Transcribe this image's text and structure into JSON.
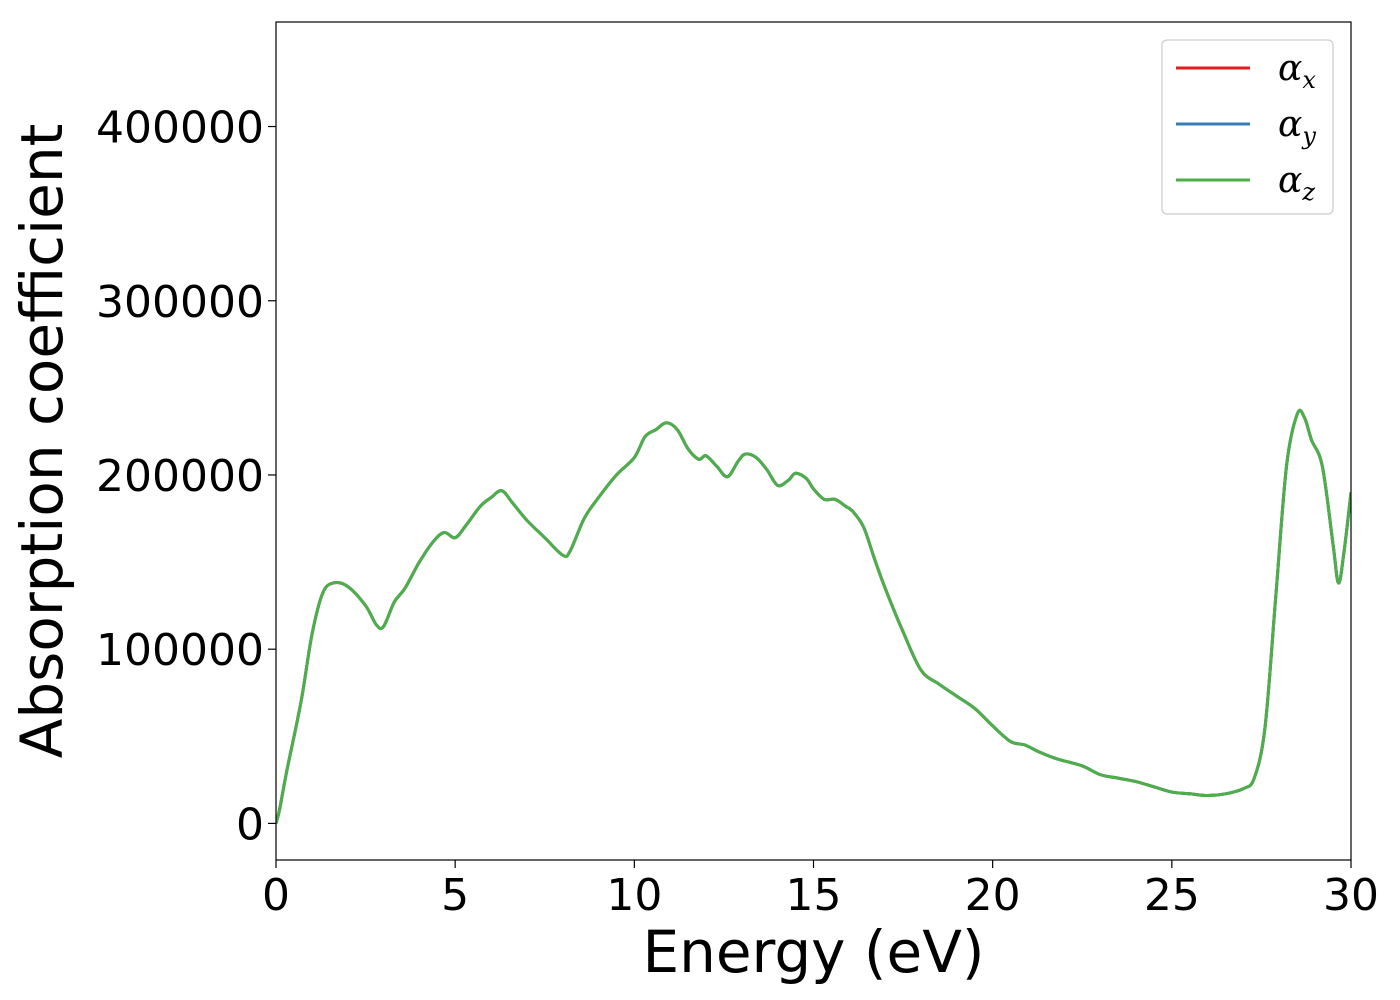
{
  "chart_data": {
    "type": "line",
    "title": "",
    "xlabel": "Energy (eV)",
    "ylabel": "Absorption coefficient",
    "xlim": [
      0,
      30
    ],
    "ylim": [
      -21000,
      460000
    ],
    "xticks": [
      0,
      5,
      10,
      15,
      20,
      25,
      30
    ],
    "xtick_labels": [
      "0",
      "5",
      "10",
      "15",
      "20",
      "25",
      "30"
    ],
    "yticks": [
      0,
      100000,
      200000,
      300000,
      400000
    ],
    "ytick_labels": [
      "0",
      "100000",
      "200000",
      "300000",
      "400000"
    ],
    "grid": false,
    "legend_position": "top-right",
    "x": [
      0,
      0.1,
      0.3,
      0.7,
      1.0,
      1.3,
      1.6,
      2.0,
      2.5,
      2.8,
      3.0,
      3.3,
      3.6,
      4.0,
      4.4,
      4.7,
      5.0,
      5.3,
      5.7,
      6.0,
      6.3,
      6.6,
      7.0,
      7.5,
      8.0,
      8.2,
      8.6,
      9.0,
      9.5,
      10.0,
      10.3,
      10.6,
      10.9,
      11.2,
      11.5,
      11.8,
      12.0,
      12.3,
      12.6,
      12.9,
      13.1,
      13.4,
      13.7,
      14.0,
      14.3,
      14.5,
      14.8,
      15.0,
      15.3,
      15.6,
      15.9,
      16.1,
      16.4,
      16.7,
      17.0,
      17.5,
      18.0,
      18.5,
      19.0,
      19.5,
      20.0,
      20.5,
      20.9,
      21.3,
      21.8,
      22.5,
      23.0,
      23.5,
      24.0,
      24.5,
      25.0,
      25.5,
      26.0,
      26.5,
      27.0,
      27.3,
      27.6,
      27.9,
      28.2,
      28.5,
      28.7,
      28.9,
      29.2,
      29.5,
      29.65,
      29.8,
      30.0
    ],
    "series": [
      {
        "name": "α_x",
        "color": "#e41a1c",
        "values": [
          0,
          8000,
          30000,
          70000,
          108000,
          132000,
          138000,
          136000,
          125000,
          114000,
          113000,
          127000,
          135000,
          150000,
          162000,
          167000,
          164000,
          171000,
          182000,
          187000,
          191000,
          184000,
          174000,
          164000,
          154000,
          156000,
          175000,
          187000,
          200000,
          210000,
          222000,
          226000,
          230000,
          226000,
          215000,
          209000,
          211000,
          205000,
          199000,
          208000,
          212000,
          210000,
          203000,
          194000,
          197000,
          201000,
          198000,
          192000,
          186000,
          186000,
          182000,
          179000,
          170000,
          152000,
          135000,
          110000,
          88000,
          80000,
          73000,
          66000,
          56000,
          47000,
          45000,
          41000,
          37000,
          33000,
          28000,
          26000,
          24000,
          21000,
          18000,
          17000,
          16000,
          17000,
          20000,
          26000,
          55000,
          130000,
          205000,
          235000,
          233000,
          220000,
          205000,
          160000,
          138000,
          155000,
          190000
        ]
      },
      {
        "name": "α_y",
        "color": "#377eb8",
        "values": [
          0,
          8000,
          30000,
          70000,
          108000,
          132000,
          138000,
          136000,
          125000,
          114000,
          113000,
          127000,
          135000,
          150000,
          162000,
          167000,
          164000,
          171000,
          182000,
          187000,
          191000,
          184000,
          174000,
          164000,
          154000,
          156000,
          175000,
          187000,
          200000,
          210000,
          222000,
          226000,
          230000,
          226000,
          215000,
          209000,
          211000,
          205000,
          199000,
          208000,
          212000,
          210000,
          203000,
          194000,
          197000,
          201000,
          198000,
          192000,
          186000,
          186000,
          182000,
          179000,
          170000,
          152000,
          135000,
          110000,
          88000,
          80000,
          73000,
          66000,
          56000,
          47000,
          45000,
          41000,
          37000,
          33000,
          28000,
          26000,
          24000,
          21000,
          18000,
          17000,
          16000,
          17000,
          20000,
          26000,
          55000,
          130000,
          205000,
          235000,
          233000,
          220000,
          205000,
          160000,
          138000,
          155000,
          190000
        ]
      },
      {
        "name": "α_z",
        "color": "#4daf4a",
        "values": [
          0,
          8000,
          30000,
          70000,
          108000,
          132000,
          138000,
          136000,
          125000,
          114000,
          113000,
          127000,
          135000,
          150000,
          162000,
          167000,
          164000,
          171000,
          182000,
          187000,
          191000,
          184000,
          174000,
          164000,
          154000,
          156000,
          175000,
          187000,
          200000,
          210000,
          222000,
          226000,
          230000,
          226000,
          215000,
          209000,
          211000,
          205000,
          199000,
          208000,
          212000,
          210000,
          203000,
          194000,
          197000,
          201000,
          198000,
          192000,
          186000,
          186000,
          182000,
          179000,
          170000,
          152000,
          135000,
          110000,
          88000,
          80000,
          73000,
          66000,
          56000,
          47000,
          45000,
          41000,
          37000,
          33000,
          28000,
          26000,
          24000,
          21000,
          18000,
          17000,
          16000,
          17000,
          20000,
          26000,
          55000,
          130000,
          205000,
          235000,
          233000,
          220000,
          205000,
          160000,
          138000,
          155000,
          190000
        ]
      }
    ],
    "legend": [
      {
        "symbol": "α",
        "subscript": "x",
        "color": "#e41a1c"
      },
      {
        "symbol": "α",
        "subscript": "y",
        "color": "#377eb8"
      },
      {
        "symbol": "α",
        "subscript": "z",
        "color": "#4daf4a"
      }
    ]
  }
}
